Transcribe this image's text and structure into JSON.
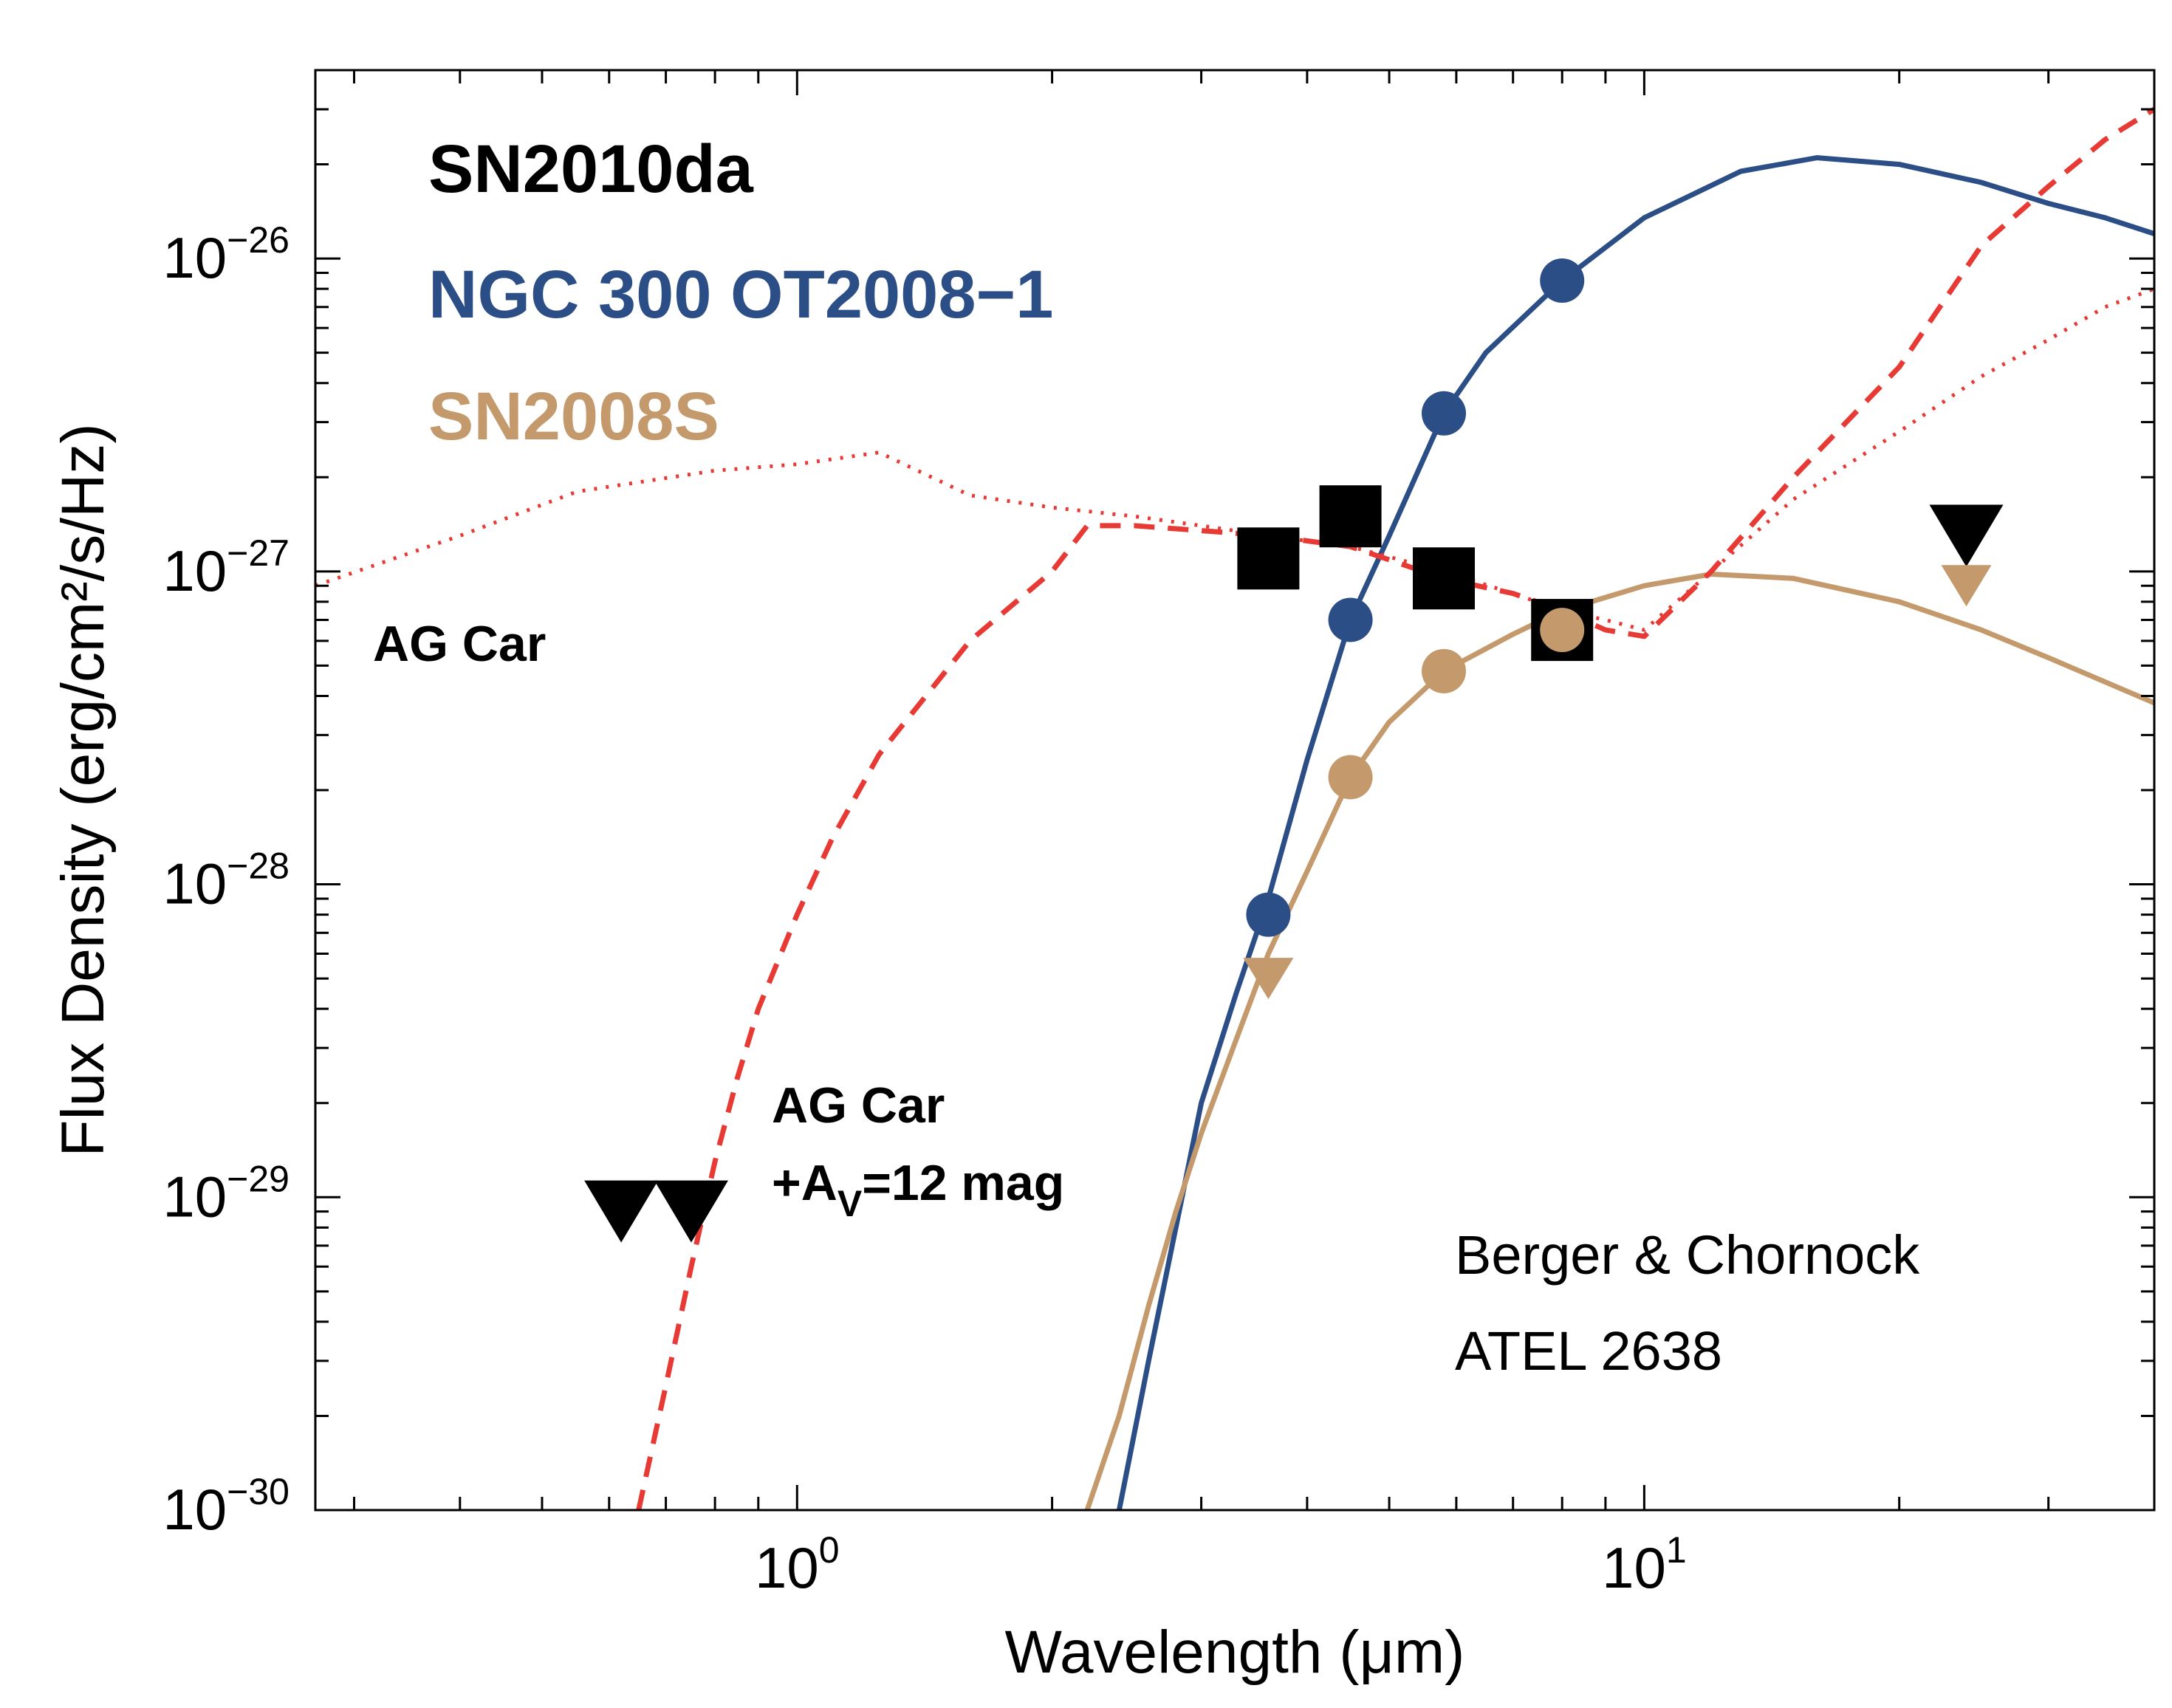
{
  "chart_data": {
    "type": "scatter",
    "title": "",
    "xlabel": "Wavelength  (μm)",
    "ylabel": "Flux Density  (erg/cm²/s/Hz)",
    "xscale": "log",
    "yscale": "log",
    "xlim": [
      0.27,
      40
    ],
    "ylim": [
      1e-30,
      4e-26
    ],
    "grid": false,
    "legend_placement": "top-left",
    "x_tick_labels": [
      {
        "value": 1,
        "base": "10",
        "exp": "0"
      },
      {
        "value": 10,
        "base": "10",
        "exp": "1"
      }
    ],
    "y_tick_labels": [
      {
        "value": 1e-30,
        "base": "10",
        "exp": "−30"
      },
      {
        "value": 1e-29,
        "base": "10",
        "exp": "−29"
      },
      {
        "value": 1e-28,
        "base": "10",
        "exp": "−28"
      },
      {
        "value": 1e-27,
        "base": "10",
        "exp": "−27"
      },
      {
        "value": 1e-26,
        "base": "10",
        "exp": "−26"
      }
    ],
    "legend": [
      {
        "label": "SN2010da",
        "color": "#000000"
      },
      {
        "label": "NGC 300 OT2008−1",
        "color": "#2B4E86"
      },
      {
        "label": "SN2008S",
        "color": "#C49A6C"
      }
    ],
    "series": [
      {
        "name": "SN2010da",
        "kind": "points",
        "marker": "square",
        "color": "#000000",
        "x": [
          3.6,
          4.5,
          5.8,
          8.0
        ],
        "y": [
          1.1e-27,
          1.5e-27,
          9.5e-28,
          6.5e-28
        ]
      },
      {
        "name": "SN2010da",
        "kind": "upper_limits",
        "marker": "triangle-down",
        "color": "#000000",
        "x": [
          0.62,
          0.75,
          24
        ],
        "y": [
          9e-30,
          9e-30,
          1.3e-27
        ]
      },
      {
        "name": "NGC 300 OT2008−1",
        "kind": "points",
        "marker": "circle",
        "color": "#2B4E86",
        "x": [
          3.6,
          4.5,
          5.8,
          8.0
        ],
        "y": [
          8e-29,
          7e-28,
          3.2e-27,
          8.5e-27
        ]
      },
      {
        "name": "NGC 300 OT2008−1",
        "kind": "curve",
        "color": "#2B4E86",
        "style": "solid",
        "x": [
          2.4,
          2.6,
          2.8,
          3.0,
          3.3,
          3.6,
          4.0,
          4.5,
          5.0,
          5.8,
          6.5,
          8.0,
          10,
          13,
          16,
          20,
          25,
          30,
          35,
          40
        ],
        "y": [
          1e-30,
          3e-30,
          8e-30,
          2e-29,
          4.5e-29,
          9e-29,
          2.5e-28,
          7e-28,
          1.3e-27,
          3.2e-27,
          5e-27,
          8.5e-27,
          1.35e-26,
          1.9e-26,
          2.1e-26,
          2e-26,
          1.75e-26,
          1.5e-26,
          1.35e-26,
          1.2e-26
        ]
      },
      {
        "name": "SN2008S",
        "kind": "points",
        "marker": "circle",
        "color": "#C49A6C",
        "x": [
          4.5,
          5.8,
          8.0
        ],
        "y": [
          2.2e-28,
          4.8e-28,
          6.5e-28
        ]
      },
      {
        "name": "SN2008S",
        "kind": "upper_limits",
        "marker": "triangle-down",
        "color": "#C49A6C",
        "x": [
          3.6,
          24
        ],
        "y": [
          5e-29,
          9e-28
        ]
      },
      {
        "name": "SN2008S",
        "kind": "curve",
        "color": "#C49A6C",
        "style": "solid",
        "x": [
          2.2,
          2.4,
          2.6,
          2.8,
          3.0,
          3.3,
          3.6,
          4.0,
          4.5,
          5.0,
          5.8,
          7.0,
          8.0,
          10,
          12,
          15,
          20,
          25,
          30,
          40
        ],
        "y": [
          1e-30,
          2e-30,
          4.5e-30,
          9e-30,
          1.6e-29,
          3.2e-29,
          6e-29,
          1.1e-28,
          2.2e-28,
          3.3e-28,
          4.8e-28,
          6.3e-28,
          7.5e-28,
          9e-28,
          9.8e-28,
          9.5e-28,
          8e-28,
          6.5e-28,
          5.3e-28,
          3.8e-28
        ]
      },
      {
        "name": "AG Car",
        "kind": "curve",
        "color": "#E83A35",
        "style": "dotted",
        "x": [
          0.27,
          0.4,
          0.55,
          0.8,
          1.0,
          1.25,
          1.6,
          2.0,
          2.5,
          3.0,
          3.6,
          4.5,
          5.8,
          7.0,
          8.0,
          9.0,
          10,
          12,
          15,
          20,
          25,
          30,
          35,
          40
        ],
        "y": [
          9e-28,
          1.3e-27,
          1.8e-27,
          2.1e-27,
          2.2e-27,
          2.4e-27,
          1.75e-27,
          1.6e-27,
          1.5e-27,
          1.4e-27,
          1.3e-27,
          1.2e-27,
          1e-27,
          8.5e-28,
          7.5e-28,
          7e-28,
          6.5e-28,
          1e-27,
          1.7e-27,
          2.8e-27,
          4.2e-27,
          5.5e-27,
          7e-27,
          8e-27
        ]
      },
      {
        "name": "AG Car +AV=12 mag",
        "kind": "curve",
        "color": "#E83A35",
        "style": "dashed",
        "x": [
          0.65,
          0.7,
          0.75,
          0.8,
          0.85,
          0.9,
          1.0,
          1.1,
          1.25,
          1.6,
          2.0,
          2.2,
          2.5,
          3.0,
          3.6,
          4.5,
          5.8,
          7.0,
          8.0,
          9.0,
          10,
          12,
          15,
          20,
          25,
          30,
          35,
          40
        ],
        "y": [
          1e-30,
          2.5e-30,
          6e-30,
          1.3e-29,
          2.4e-29,
          4e-29,
          8e-29,
          1.4e-28,
          2.6e-28,
          6e-28,
          1e-27,
          1.4e-27,
          1.4e-27,
          1.35e-27,
          1.3e-27,
          1.2e-27,
          9.5e-28,
          8.5e-28,
          7.5e-28,
          6.5e-28,
          6.2e-28,
          1e-27,
          2e-27,
          4.5e-27,
          1.1e-26,
          1.7e-26,
          2.4e-26,
          3e-26
        ]
      }
    ],
    "annotations": {
      "ag_car": "AG Car",
      "ag_car_av_line1": "AG Car",
      "ag_car_av_line2_pre": "+A",
      "ag_car_av_line2_sub": "V",
      "ag_car_av_line2_post": "=12 mag",
      "credit_line1": "Berger & Chornock",
      "credit_line2": "ATEL 2638"
    }
  }
}
